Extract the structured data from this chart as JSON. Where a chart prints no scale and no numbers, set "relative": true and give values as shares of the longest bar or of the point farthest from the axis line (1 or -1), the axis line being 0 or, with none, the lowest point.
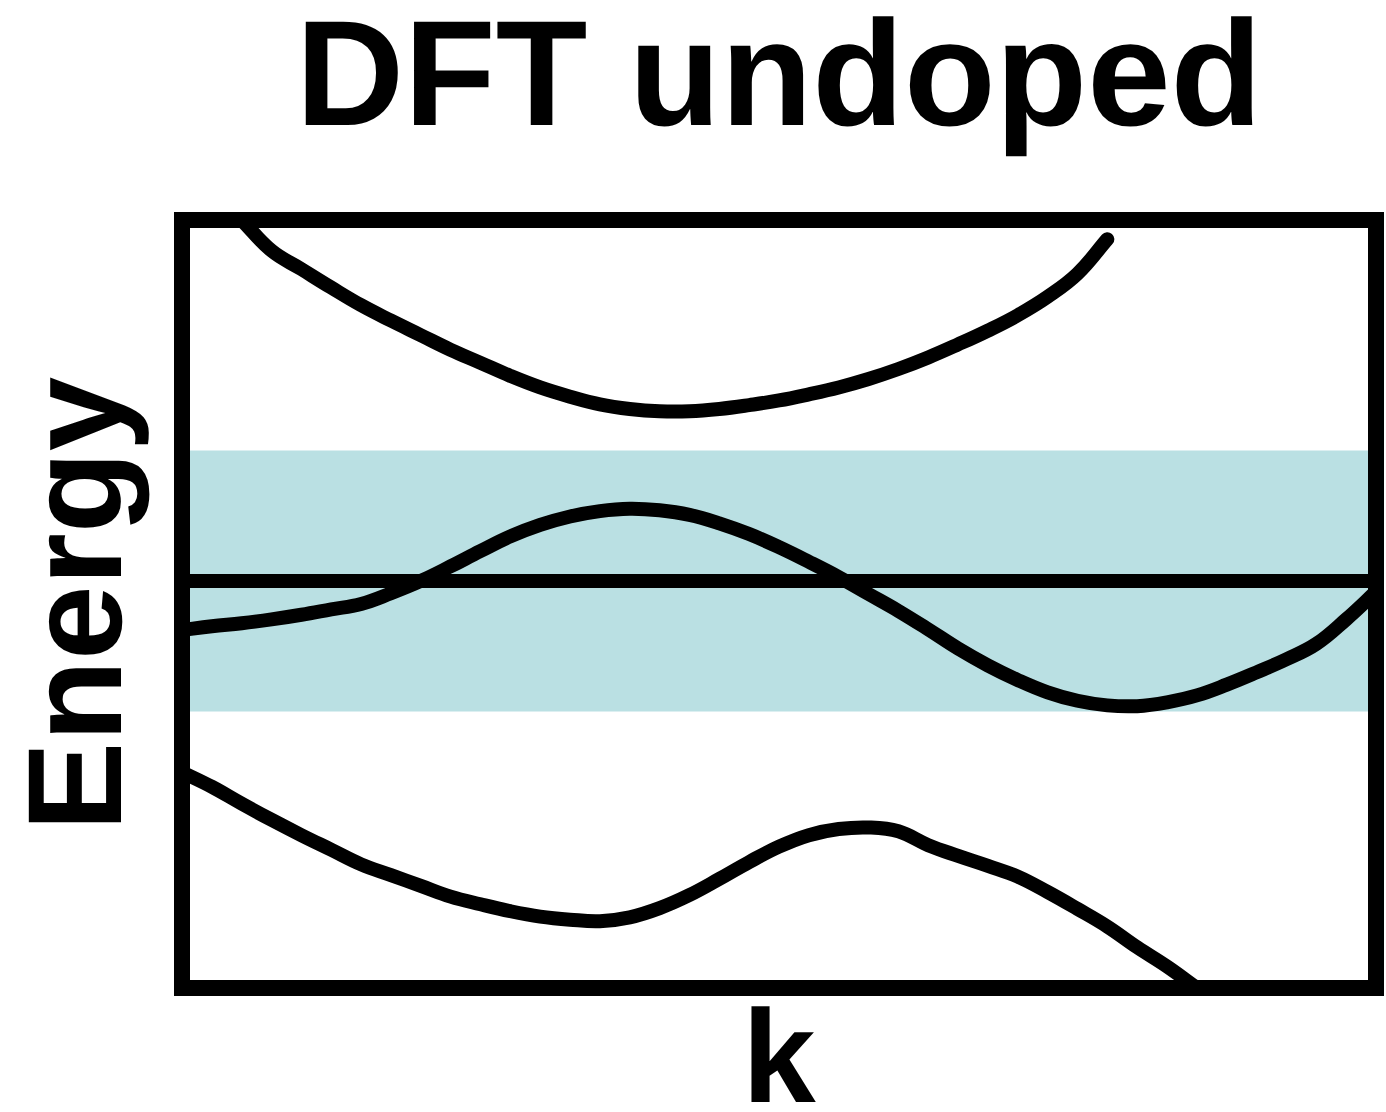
{
  "chart_data": {
    "type": "line",
    "title": "DFT undoped",
    "xlabel": "k",
    "ylabel": "Energy",
    "relative": true,
    "categories": [
      null,
      null,
      null,
      null,
      null,
      null,
      null,
      null,
      null,
      null,
      null,
      null,
      null,
      null,
      null,
      null,
      null,
      null,
      null,
      null,
      null,
      null,
      null,
      null,
      null,
      null,
      null,
      null,
      null,
      null,
      null,
      null,
      null,
      null,
      null,
      null,
      null,
      null,
      null,
      null,
      null
    ],
    "series": [
      {
        "color": "#000000",
        "values": [
          null,
          null,
          1.0,
          0.96,
          0.936,
          0.912,
          0.889,
          0.869,
          0.85,
          0.831,
          0.814,
          0.797,
          0.782,
          0.77,
          0.76,
          0.754,
          0.751,
          0.751,
          0.754,
          0.759,
          0.765,
          0.773,
          0.782,
          0.793,
          0.806,
          0.821,
          0.838,
          0.856,
          0.876,
          0.9,
          0.93,
          0.975,
          null,
          null,
          null,
          null,
          null,
          null,
          null,
          null,
          null
        ]
      },
      {
        "color": "#000000",
        "values": [
          0.466,
          0.471,
          0.475,
          0.48,
          0.486,
          0.493,
          0.5,
          0.514,
          0.53,
          0.549,
          0.569,
          0.588,
          0.603,
          0.614,
          0.621,
          0.624,
          0.622,
          0.616,
          0.605,
          0.591,
          0.574,
          0.555,
          0.535,
          0.513,
          0.491,
          0.467,
          0.442,
          0.42,
          0.401,
          0.385,
          0.374,
          0.368,
          0.367,
          0.372,
          0.381,
          0.395,
          0.411,
          0.428,
          0.448,
          0.48,
          0.516
        ]
      },
      {
        "color": "#000000",
        "values": [
          0.281,
          0.262,
          0.24,
          0.219,
          0.199,
          0.18,
          0.161,
          0.147,
          0.133,
          0.119,
          0.109,
          0.1,
          0.093,
          0.089,
          0.087,
          0.092,
          0.104,
          0.121,
          0.142,
          0.164,
          0.184,
          0.199,
          0.207,
          0.209,
          0.204,
          0.186,
          0.172,
          0.159,
          0.145,
          0.125,
          0.103,
          0.08,
          0.053,
          0.028,
          0.0,
          null,
          null,
          null,
          null,
          null,
          null
        ]
      }
    ],
    "ref_lines": [
      {
        "axis": "y",
        "value": 0.53,
        "color": "#000000"
      }
    ],
    "bands": [
      {
        "axis": "y",
        "from": 0.36,
        "to": 0.7,
        "color": "#bae0e3"
      }
    ],
    "legend": false,
    "grid": false,
    "marker": "none",
    "line_style": "solid"
  }
}
